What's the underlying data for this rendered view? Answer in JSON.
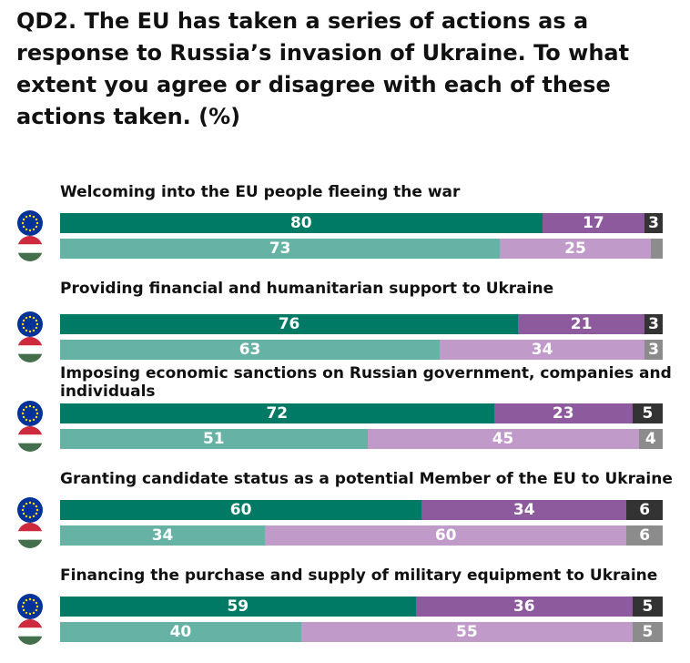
{
  "title": "QD2. The EU has taken a series of actions as a response to Russia’s invasion of Ukraine. To what extent you agree or disagree with each of these actions taken. (%)",
  "colors": {
    "eu_agree": "#007a64",
    "eu_disagree": "#8e5a9e",
    "eu_dk": "#333333",
    "hu_agree": "#66b3a6",
    "hu_disagree": "#c09ac8",
    "hu_dk": "#8c8c8c"
  },
  "chart_data": {
    "type": "bar",
    "orientation": "horizontal",
    "stacked": true,
    "normalized": true,
    "categories": [
      "Welcoming into the EU people fleeing the war",
      "Providing financial and humanitarian support to Ukraine",
      "Imposing economic sanctions on Russian government, companies and individuals",
      "Granting candidate status as a potential Member of the EU to Ukraine",
      "Financing the purchase and supply of military equipment to Ukraine"
    ],
    "groups": [
      {
        "flag": "eu-flag-icon",
        "series": [
          {
            "values": [
              80,
              76,
              72,
              60,
              59
            ],
            "color": "#007a64"
          },
          {
            "values": [
              17,
              21,
              23,
              34,
              36
            ],
            "color": "#8e5a9e"
          },
          {
            "values": [
              3,
              3,
              5,
              6,
              5
            ],
            "color": "#333333"
          }
        ]
      },
      {
        "flag": "hungary-flag-icon",
        "series": [
          {
            "values": [
              73,
              63,
              51,
              34,
              40
            ],
            "color": "#66b3a6"
          },
          {
            "values": [
              25,
              34,
              45,
              60,
              55
            ],
            "color": "#c09ac8"
          },
          {
            "values": [
              2,
              3,
              4,
              6,
              5
            ],
            "color": "#8c8c8c"
          }
        ]
      }
    ],
    "value_labels": [
      {
        "eu": [
          "80",
          "17",
          "3"
        ],
        "hu": [
          "73",
          "25",
          ""
        ]
      },
      {
        "eu": [
          "76",
          "21",
          "3"
        ],
        "hu": [
          "63",
          "34",
          "3"
        ]
      },
      {
        "eu": [
          "72",
          "23",
          "5"
        ],
        "hu": [
          "51",
          "45",
          "4"
        ]
      },
      {
        "eu": [
          "60",
          "34",
          "6"
        ],
        "hu": [
          "34",
          "60",
          "6"
        ]
      },
      {
        "eu": [
          "59",
          "36",
          "5"
        ],
        "hu": [
          "40",
          "55",
          "5"
        ]
      }
    ],
    "xlim": [
      0,
      100
    ]
  }
}
